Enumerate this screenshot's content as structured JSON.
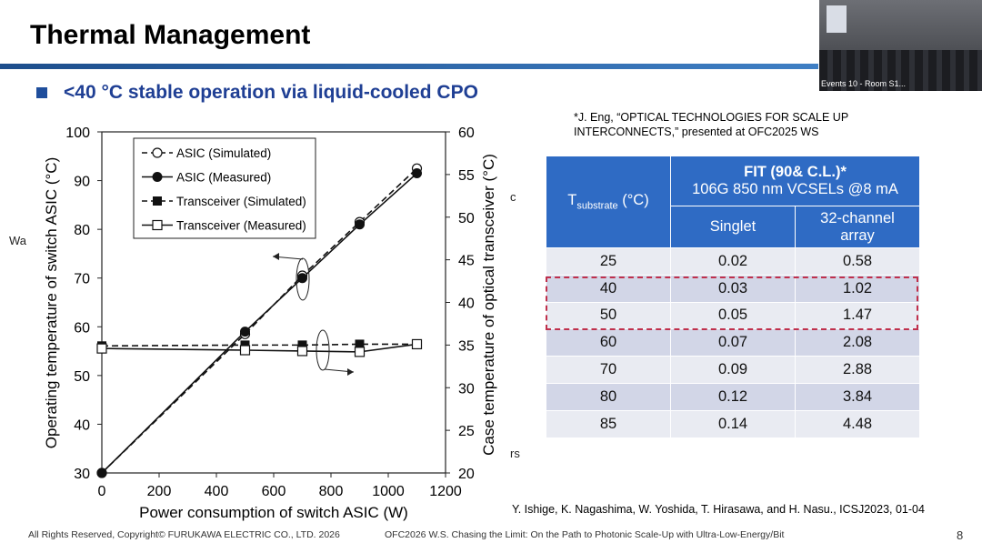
{
  "slide": {
    "title": "Thermal Management",
    "headline": "<40 °C stable operation via liquid-cooled CPO",
    "page_number": "8",
    "footer_left": "All Rights Reserved, Copyright© FURUKAWA ELECTRIC CO., LTD. 2026",
    "footer_center": "OFC2026 W.S. Chasing the Limit: On the Path to Photonic Scale-Up with Ultra-Low-Energy/Bit",
    "video_caption": "Events 10 - Room S1...",
    "edge_left": "Wa",
    "edge_mid": "c",
    "edge_bottom": "rs"
  },
  "references": {
    "top": "*J. Eng, “OPTICAL TECHNOLOGIES FOR SCALE UP INTERCONNECTS,” presented at OFC2025 WS",
    "bottom": "Y. Ishige, K. Nagashima, W. Yoshida, T. Hirasawa, and H. Nasu., ICSJ2023, 01-04"
  },
  "table": {
    "group_header_line1": "FIT (90& C.L.)*",
    "group_header_line2": "106G 850 nm VCSELs @8 mA",
    "col1_prefix": "T",
    "col1_sub": "substrate",
    "col1_unit": " (°C)",
    "col2": "Singlet",
    "col3": "32-channel array",
    "rows": [
      [
        "25",
        "0.02",
        "0.58"
      ],
      [
        "40",
        "0.03",
        "1.02"
      ],
      [
        "50",
        "0.05",
        "1.47"
      ],
      [
        "60",
        "0.07",
        "2.08"
      ],
      [
        "70",
        "0.09",
        "2.88"
      ],
      [
        "80",
        "0.12",
        "3.84"
      ],
      [
        "85",
        "0.14",
        "4.48"
      ]
    ],
    "highlight_color": "#c0304c",
    "header_color": "#2f6bc4"
  },
  "chart_data": {
    "type": "line",
    "title": "",
    "xlabel": "Power consumption of switch ASIC (W)",
    "ylabel": "Operating temperature of switch ASIC (°C)",
    "y2label": "Case temperature of optical transceiver (°C)",
    "xlim": [
      0,
      1200
    ],
    "ylim": [
      30,
      100
    ],
    "y2lim": [
      20,
      60
    ],
    "x_ticks": [
      0,
      200,
      400,
      600,
      800,
      1000,
      1200
    ],
    "y_ticks": [
      30,
      40,
      50,
      60,
      70,
      80,
      90,
      100
    ],
    "y2_ticks": [
      20,
      25,
      30,
      35,
      40,
      45,
      50,
      55,
      60
    ],
    "grid": false,
    "legend_position": "top-left",
    "series": [
      {
        "name": "ASIC (Simulated)",
        "axis": "left",
        "marker": "open-circle",
        "line": "dashed",
        "x": [
          0,
          500,
          700,
          900,
          1100
        ],
        "y": [
          30,
          58.5,
          70.5,
          81.5,
          92.5
        ]
      },
      {
        "name": "ASIC (Measured)",
        "axis": "left",
        "marker": "filled-circle",
        "line": "solid",
        "x": [
          0,
          500,
          700,
          900,
          1100
        ],
        "y": [
          30,
          59,
          70,
          81,
          91.5
        ]
      },
      {
        "name": "Transceiver (Simulated)",
        "axis": "right",
        "marker": "filled-square",
        "line": "dashed",
        "x": [
          0,
          500,
          700,
          900,
          1100
        ],
        "y": [
          34.9,
          35.0,
          35.0,
          35.1,
          35.1
        ]
      },
      {
        "name": "Transceiver (Measured)",
        "axis": "right",
        "marker": "open-square",
        "line": "solid",
        "x": [
          0,
          500,
          700,
          900,
          1100
        ],
        "y": [
          34.6,
          34.4,
          34.3,
          34.2,
          35.1
        ]
      }
    ]
  }
}
